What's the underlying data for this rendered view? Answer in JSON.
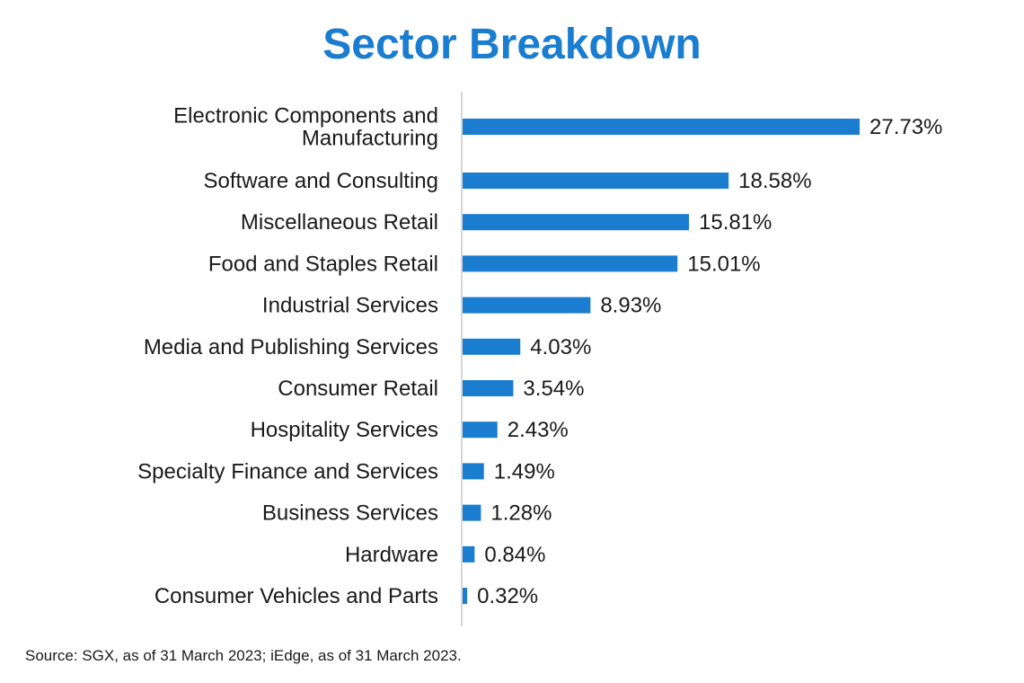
{
  "chart_data": {
    "type": "bar",
    "orientation": "horizontal",
    "title": "Sector Breakdown",
    "categories": [
      [
        "Electronic Components and",
        "Manufacturing"
      ],
      [
        "Software and Consulting"
      ],
      [
        "Miscellaneous Retail"
      ],
      [
        "Food and Staples Retail"
      ],
      [
        "Industrial Services"
      ],
      [
        "Media and Publishing Services"
      ],
      [
        "Consumer Retail"
      ],
      [
        "Hospitality Services"
      ],
      [
        "Specialty Finance and Services"
      ],
      [
        "Business Services"
      ],
      [
        "Hardware"
      ],
      [
        "Consumer Vehicles and Parts"
      ]
    ],
    "values": [
      27.73,
      18.58,
      15.81,
      15.01,
      8.93,
      4.03,
      3.54,
      2.43,
      1.49,
      1.28,
      0.84,
      0.32
    ],
    "value_labels": [
      "27.73%",
      "18.58%",
      "15.81%",
      "15.01%",
      "8.93%",
      "4.03%",
      "3.54%",
      "2.43%",
      "1.49%",
      "1.28%",
      "0.84%",
      "0.32%"
    ],
    "xlim": [
      0,
      27.73
    ],
    "unit": "%"
  },
  "colors": {
    "title": "#1a7dd0",
    "bar": "#1a7dd0",
    "axis": "#c8c8c8"
  },
  "footer": {
    "source": "Source: SGX, as of 31 March 2023; iEdge, as of 31 March 2023."
  }
}
